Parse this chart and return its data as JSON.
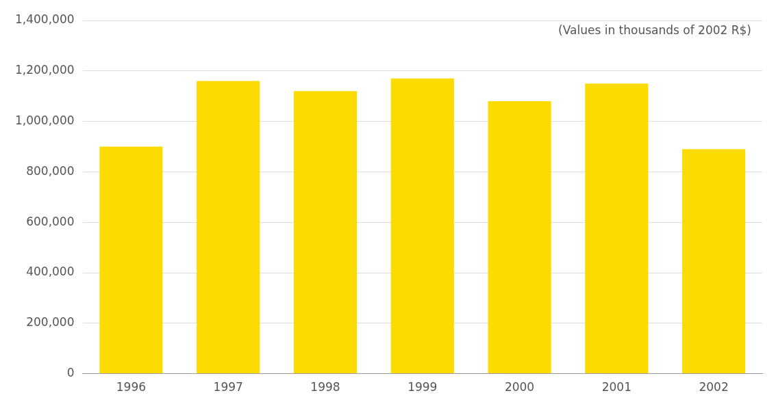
{
  "chart_data": {
    "type": "bar",
    "categories": [
      "1996",
      "1997",
      "1998",
      "1999",
      "2000",
      "2001",
      "2002"
    ],
    "values": [
      900000,
      1160000,
      1120000,
      1170000,
      1080000,
      1150000,
      890000
    ],
    "color": "#fcdc00",
    "ylim": [
      0,
      1400000
    ],
    "yticks": [
      0,
      {
        "value": 200000,
        "label": "200,000"
      },
      {
        "value": 400000,
        "label": "400,000"
      },
      {
        "value": 600000,
        "label": "600,000"
      },
      {
        "value": 800000,
        "label": "800,000"
      },
      {
        "value": 1000000,
        "label": "1,000,000"
      },
      {
        "value": 1200000,
        "label": "1,200,000"
      },
      {
        "value": 1400000,
        "label": "1,400,000"
      }
    ],
    "grid": "y",
    "legend": false,
    "annotations": [
      "(Values in thousands of 2002 R$)"
    ]
  }
}
